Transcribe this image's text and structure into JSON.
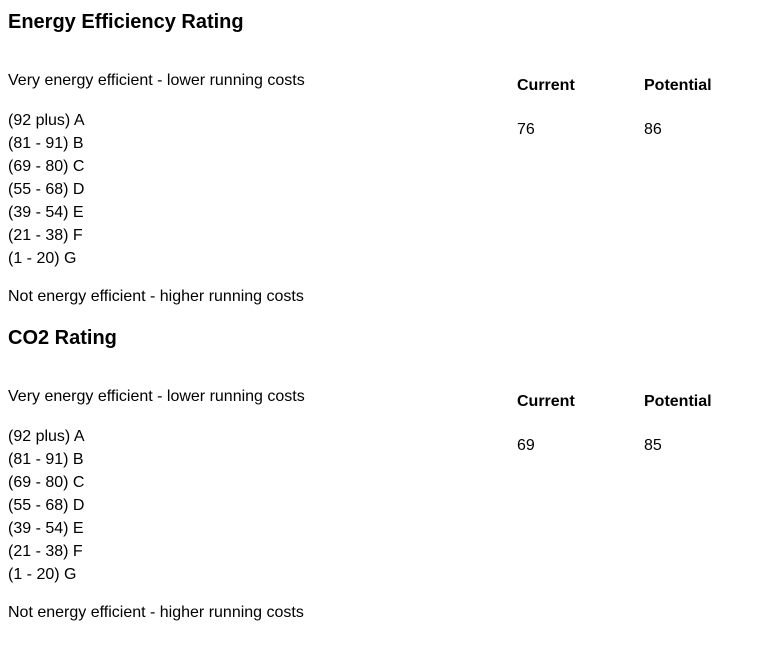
{
  "sections": [
    {
      "title": "Energy Efficiency Rating",
      "top_label": "Very energy efficient - lower running costs",
      "bottom_label": "Not energy efficient - higher running costs",
      "bands": [
        "(92 plus) A",
        "(81 - 91) B",
        "(69 - 80) C",
        "(55 - 68) D",
        "(39 - 54) E",
        "(21 - 38) F",
        "(1 - 20) G"
      ],
      "current_header": "Current",
      "potential_header": "Potential",
      "current_value": "76",
      "potential_value": "86"
    },
    {
      "title": "CO2 Rating",
      "top_label": "Very energy efficient - lower running costs",
      "bottom_label": "Not energy efficient - higher running costs",
      "bands": [
        "(92 plus) A",
        "(81 - 91) B",
        "(69 - 80) C",
        "(55 - 68) D",
        "(39 - 54) E",
        "(21 - 38) F",
        "(1 - 20) G"
      ],
      "current_header": "Current",
      "potential_header": "Potential",
      "current_value": "69",
      "potential_value": "85"
    }
  ]
}
